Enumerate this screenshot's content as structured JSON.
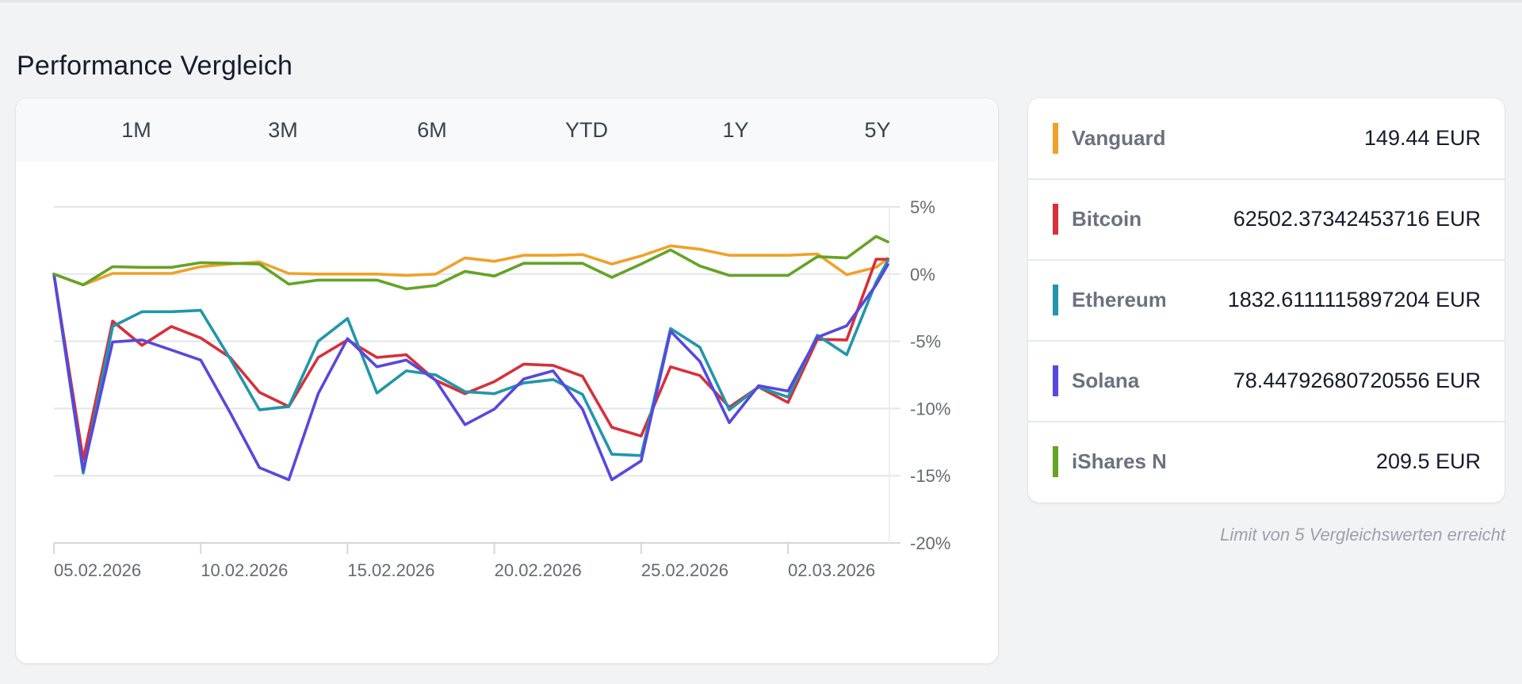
{
  "page": {
    "title": "Performance Vergleich"
  },
  "tabs": [
    {
      "label": "1M"
    },
    {
      "label": "3M"
    },
    {
      "label": "6M"
    },
    {
      "label": "YTD"
    },
    {
      "label": "1Y"
    },
    {
      "label": "5Y"
    }
  ],
  "legend": {
    "items": [
      {
        "name": "Vanguard",
        "value": "149.44 EUR",
        "color": "#f0a12a"
      },
      {
        "name": "Bitcoin",
        "value": "62502.37342453716 EUR",
        "color": "#d6303a"
      },
      {
        "name": "Ethereum",
        "value": "1832.6111115897204 EUR",
        "color": "#2196ab"
      },
      {
        "name": "Solana",
        "value": "78.44792680720556 EUR",
        "color": "#5748de"
      },
      {
        "name": "iShares N",
        "value": "209.5 EUR",
        "color": "#65a326"
      }
    ],
    "limit_note": "Limit von 5 Vergleichswerten erreicht"
  },
  "chart_data": {
    "type": "line",
    "title": "",
    "xlabel": "",
    "ylabel": "",
    "ylim": [
      -20,
      5
    ],
    "yticks": [
      5,
      0,
      -5,
      -10,
      -15,
      -20
    ],
    "ytick_labels": [
      "5%",
      "0%",
      "-5%",
      "-10%",
      "-15%",
      "-20%"
    ],
    "y_axis_position": "right",
    "grid": true,
    "x": [
      0,
      1,
      2,
      3,
      4,
      5,
      6,
      7,
      8,
      9,
      10,
      11,
      12,
      13,
      14,
      15,
      16,
      17,
      18,
      19,
      20,
      21,
      22,
      23,
      24,
      25,
      26,
      27,
      28,
      28.4
    ],
    "xlim": [
      0,
      28.4
    ],
    "xticks": [
      0,
      5,
      10,
      15,
      20,
      25
    ],
    "xtick_labels": [
      "05.02.2026",
      "10.02.2026",
      "15.02.2026",
      "20.02.2026",
      "25.02.2026",
      "02.03.2026"
    ],
    "series": [
      {
        "name": "Vanguard",
        "color": "#f0a12a",
        "values": [
          0,
          -0.8,
          0.05,
          0.05,
          0.05,
          0.55,
          0.75,
          0.9,
          0.05,
          0.0,
          0.0,
          0.0,
          -0.1,
          0.0,
          1.2,
          0.95,
          1.4,
          1.4,
          1.45,
          0.75,
          1.35,
          2.1,
          1.85,
          1.4,
          1.4,
          1.4,
          1.5,
          -0.05,
          0.5,
          1.15
        ]
      },
      {
        "name": "Bitcoin",
        "color": "#d6303a",
        "values": [
          0,
          -13.8,
          -3.5,
          -5.3,
          -3.9,
          -4.75,
          -6.2,
          -8.8,
          -9.85,
          -6.2,
          -4.9,
          -6.2,
          -6.0,
          -7.9,
          -8.9,
          -8.0,
          -6.7,
          -6.8,
          -7.6,
          -11.4,
          -12.05,
          -6.9,
          -7.55,
          -9.9,
          -8.4,
          -9.55,
          -4.85,
          -4.9,
          1.1,
          1.1
        ]
      },
      {
        "name": "Ethereum",
        "color": "#2196ab",
        "values": [
          0,
          -14.8,
          -3.9,
          -2.8,
          -2.8,
          -2.7,
          -6.3,
          -10.1,
          -9.85,
          -5.0,
          -3.3,
          -8.85,
          -7.2,
          -7.5,
          -8.75,
          -8.9,
          -8.1,
          -7.85,
          -8.95,
          -13.4,
          -13.5,
          -4.05,
          -5.45,
          -10.1,
          -8.4,
          -9.15,
          -4.55,
          -6.0,
          -0.6,
          1.0
        ]
      },
      {
        "name": "Solana",
        "color": "#5748de",
        "values": [
          0,
          -14.6,
          -5.05,
          -4.9,
          -5.65,
          -6.4,
          -10.3,
          -14.4,
          -15.3,
          -8.9,
          -4.8,
          -6.9,
          -6.4,
          -7.9,
          -11.2,
          -10.05,
          -7.8,
          -7.2,
          -10.05,
          -15.3,
          -13.9,
          -4.25,
          -6.5,
          -11.05,
          -8.3,
          -8.7,
          -4.7,
          -3.85,
          -0.8,
          0.7
        ]
      },
      {
        "name": "iShares N",
        "color": "#65a326",
        "values": [
          0,
          -0.8,
          0.55,
          0.5,
          0.5,
          0.85,
          0.8,
          0.75,
          -0.75,
          -0.45,
          -0.45,
          -0.45,
          -1.1,
          -0.85,
          0.2,
          -0.15,
          0.8,
          0.8,
          0.8,
          -0.25,
          0.75,
          1.8,
          0.6,
          -0.1,
          -0.1,
          -0.1,
          1.3,
          1.2,
          2.8,
          2.4
        ]
      }
    ]
  }
}
